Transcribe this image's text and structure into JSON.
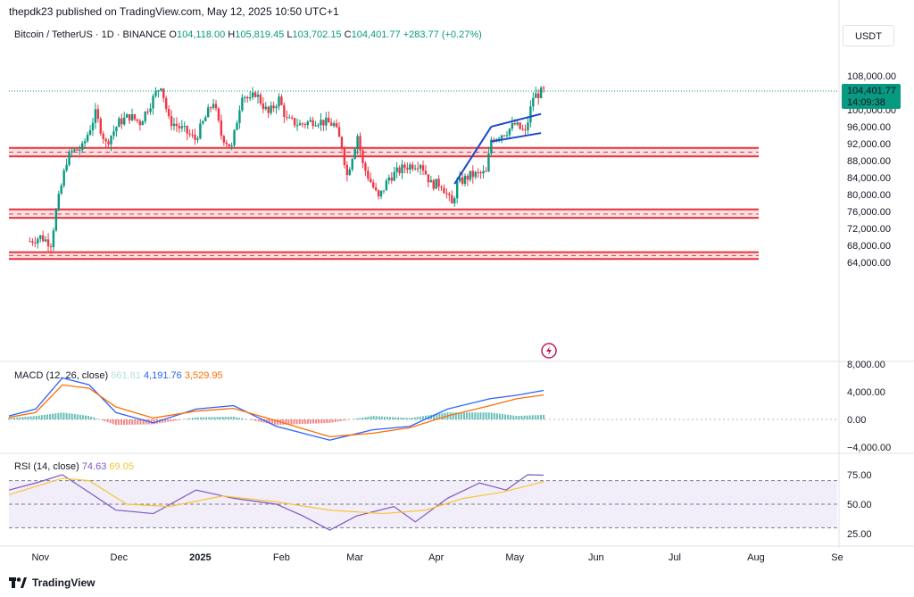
{
  "header": {
    "published": "thepdk23 published on TradingView.com, May 12, 2025 10:50 UTC+1"
  },
  "legend": {
    "symbol": "Bitcoin / TetherUS · 1D · BINANCE",
    "o_label": "O",
    "o_value": "104,118.00",
    "h_label": "H",
    "h_value": "105,819.45",
    "l_label": "L",
    "l_value": "103,702.15",
    "c_label": "C",
    "c_value": "104,401.77",
    "change": "+283.77 (+0.27%)"
  },
  "currency": "USDT",
  "price_tag": {
    "price": "104,401.77",
    "countdown": "14:09:38"
  },
  "macd_legend": {
    "name": "MACD (12, 26, close)",
    "hist": "661.81",
    "macd": "4,191.76",
    "signal": "3,529.95"
  },
  "rsi_legend": {
    "name": "RSI (14, close)",
    "rsi": "74.63",
    "ma": "69.05"
  },
  "footer": {
    "brand": "TradingView"
  },
  "colors": {
    "up": "#089981",
    "down": "#f23645",
    "zone": "#e8323c",
    "channel": "#1848cc",
    "macd": "#2962ff",
    "signal": "#ff6d00",
    "rsi": "#7e57c2",
    "rsi_ma": "#f7c335"
  },
  "chart_data": [
    {
      "type": "candlestick",
      "title": "Bitcoin / TetherUS · 1D · BINANCE",
      "y_ticks": [
        "108,000.00",
        "100,000.00",
        "96,000.00",
        "92,000.00",
        "88,000.00",
        "84,000.00",
        "80,000.00",
        "76,000.00",
        "72,000.00",
        "68,000.00",
        "64,000.00"
      ],
      "ylim": [
        62000,
        111000
      ],
      "x_ticks": [
        "Nov",
        "Dec",
        "2025",
        "Feb",
        "Mar",
        "Apr",
        "May",
        "Jun",
        "Jul",
        "Aug",
        "Se"
      ],
      "close_path": [
        [
          "2024-10-28",
          69000
        ],
        [
          "2024-11-01",
          70000
        ],
        [
          "2024-11-05",
          68500
        ],
        [
          "2024-11-07",
          76000
        ],
        [
          "2024-11-11",
          88000
        ],
        [
          "2024-11-13",
          90000
        ],
        [
          "2024-11-17",
          91000
        ],
        [
          "2024-11-22",
          99000
        ],
        [
          "2024-11-26",
          92000
        ],
        [
          "2024-12-01",
          97000
        ],
        [
          "2024-12-05",
          98500
        ],
        [
          "2024-12-09",
          97000
        ],
        [
          "2024-12-13",
          101500
        ],
        [
          "2024-12-17",
          106000
        ],
        [
          "2024-12-20",
          97500
        ],
        [
          "2024-12-26",
          95000
        ],
        [
          "2024-12-30",
          93000
        ],
        [
          "2025-01-06",
          102000
        ],
        [
          "2025-01-09",
          94000
        ],
        [
          "2025-01-13",
          91000
        ],
        [
          "2025-01-17",
          104000
        ],
        [
          "2025-01-20",
          102000
        ],
        [
          "2025-01-22",
          104000
        ],
        [
          "2025-01-27",
          99000
        ],
        [
          "2025-01-31",
          102500
        ],
        [
          "2025-02-03",
          97500
        ],
        [
          "2025-02-08",
          96500
        ],
        [
          "2025-02-14",
          97500
        ],
        [
          "2025-02-21",
          96500
        ],
        [
          "2025-02-24",
          91500
        ],
        [
          "2025-02-26",
          84500
        ],
        [
          "2025-03-02",
          94000
        ],
        [
          "2025-03-04",
          87000
        ],
        [
          "2025-03-10",
          79000
        ],
        [
          "2025-03-14",
          84000
        ],
        [
          "2025-03-20",
          86500
        ],
        [
          "2025-03-26",
          87500
        ],
        [
          "2025-03-30",
          82500
        ],
        [
          "2025-04-03",
          82500
        ],
        [
          "2025-04-07",
          77500
        ],
        [
          "2025-04-09",
          82500
        ],
        [
          "2025-04-14",
          84500
        ],
        [
          "2025-04-20",
          85000
        ],
        [
          "2025-04-22",
          93000
        ],
        [
          "2025-04-28",
          95000
        ],
        [
          "2025-05-01",
          96500
        ],
        [
          "2025-05-05",
          94500
        ],
        [
          "2025-05-08",
          103000
        ],
        [
          "2025-05-12",
          104401.77
        ]
      ],
      "horizontal_zones": [
        {
          "top": 91000,
          "bottom": 89000,
          "mid": 90000
        },
        {
          "top": 76500,
          "bottom": 74500,
          "mid": 75400
        },
        {
          "top": 66400,
          "bottom": 64800,
          "mid": 65600
        }
      ],
      "channel": {
        "impulse": [
          [
            "2025-04-08",
            82500
          ],
          [
            "2025-04-22",
            96000
          ]
        ],
        "upper": [
          [
            "2025-04-22",
            96000
          ],
          [
            "2025-05-11",
            99000
          ]
        ],
        "lower": [
          [
            "2025-04-22",
            92500
          ],
          [
            "2025-05-11",
            94500
          ]
        ]
      },
      "last_price": 104401.77
    },
    {
      "type": "line",
      "title": "MACD (12, 26, close)",
      "y_ticks": [
        "8,000.00",
        "4,000.00",
        "0.00",
        "−4,000.00"
      ],
      "ylim": [
        -5000,
        8000
      ],
      "series": [
        {
          "name": "MACD",
          "points": [
            [
              0,
              500
            ],
            [
              0.05,
              1500
            ],
            [
              0.1,
              6000
            ],
            [
              0.15,
              5000
            ],
            [
              0.2,
              1000
            ],
            [
              0.27,
              -500
            ],
            [
              0.35,
              1500
            ],
            [
              0.42,
              2000
            ],
            [
              0.5,
              -1000
            ],
            [
              0.6,
              -3000
            ],
            [
              0.68,
              -1500
            ],
            [
              0.75,
              -1000
            ],
            [
              0.82,
              1500
            ],
            [
              0.9,
              3000
            ],
            [
              0.95,
              3500
            ],
            [
              1.0,
              4191.76
            ]
          ]
        },
        {
          "name": "Signal",
          "points": [
            [
              0,
              300
            ],
            [
              0.05,
              1000
            ],
            [
              0.1,
              5000
            ],
            [
              0.15,
              4500
            ],
            [
              0.2,
              1800
            ],
            [
              0.27,
              200
            ],
            [
              0.35,
              1200
            ],
            [
              0.42,
              1600
            ],
            [
              0.5,
              -200
            ],
            [
              0.6,
              -2500
            ],
            [
              0.68,
              -2000
            ],
            [
              0.75,
              -1200
            ],
            [
              0.82,
              500
            ],
            [
              0.9,
              2000
            ],
            [
              0.95,
              3000
            ],
            [
              1.0,
              3529.95
            ]
          ]
        }
      ],
      "histogram_last": 661.81
    },
    {
      "type": "line",
      "title": "RSI (14, close)",
      "y_ticks": [
        "75.00",
        "50.00",
        "25.00"
      ],
      "ylim": [
        20,
        90
      ],
      "band": [
        30,
        70
      ],
      "series": [
        {
          "name": "RSI",
          "points": [
            [
              0,
              62
            ],
            [
              0.05,
              68
            ],
            [
              0.1,
              75
            ],
            [
              0.15,
              60
            ],
            [
              0.2,
              45
            ],
            [
              0.27,
              42
            ],
            [
              0.35,
              62
            ],
            [
              0.42,
              55
            ],
            [
              0.5,
              50
            ],
            [
              0.55,
              40
            ],
            [
              0.6,
              28
            ],
            [
              0.65,
              40
            ],
            [
              0.72,
              48
            ],
            [
              0.76,
              35
            ],
            [
              0.82,
              55
            ],
            [
              0.88,
              68
            ],
            [
              0.93,
              62
            ],
            [
              0.97,
              75
            ],
            [
              1.0,
              74.63
            ]
          ]
        },
        {
          "name": "RSI MA",
          "points": [
            [
              0,
              58
            ],
            [
              0.1,
              72
            ],
            [
              0.15,
              70
            ],
            [
              0.22,
              50
            ],
            [
              0.3,
              48
            ],
            [
              0.4,
              57
            ],
            [
              0.5,
              52
            ],
            [
              0.6,
              45
            ],
            [
              0.7,
              42
            ],
            [
              0.78,
              45
            ],
            [
              0.85,
              55
            ],
            [
              0.92,
              60
            ],
            [
              1.0,
              69.05
            ]
          ]
        }
      ]
    }
  ]
}
